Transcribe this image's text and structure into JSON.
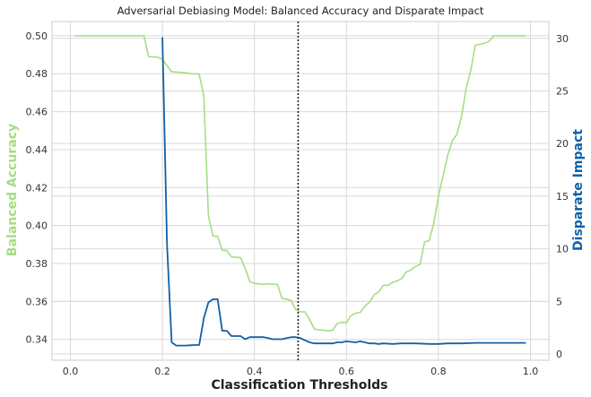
{
  "chart_data": {
    "type": "line",
    "title": "Adversarial Debiasing Model: Balanced Accuracy and Disparate Impact",
    "xlabel": "Classification Thresholds",
    "ylabel_left": "Balanced Accuracy",
    "ylabel_right": "Disparate Impact",
    "xlim": [
      -0.04,
      1.04
    ],
    "ylim_left": [
      0.329,
      0.5075
    ],
    "ylim_right": [
      -0.6,
      31.6
    ],
    "x_ticks": [
      "0.0",
      "0.2",
      "0.4",
      "0.6",
      "0.8",
      "1.0"
    ],
    "x_tick_values": [
      0.0,
      0.2,
      0.4,
      0.6,
      0.8,
      1.0
    ],
    "y_left_ticks": [
      "0.34",
      "0.36",
      "0.38",
      "0.40",
      "0.42",
      "0.44",
      "0.46",
      "0.48",
      "0.50"
    ],
    "y_left_tick_values": [
      0.34,
      0.36,
      0.38,
      0.4,
      0.42,
      0.44,
      0.46,
      0.48,
      0.5
    ],
    "y_right_ticks": [
      "0",
      "5",
      "10",
      "15",
      "20",
      "25",
      "30"
    ],
    "y_right_tick_values": [
      0,
      5,
      10,
      15,
      20,
      25,
      30
    ],
    "grid": true,
    "vline_x": 0.495,
    "colors": {
      "balanced_accuracy": "#a6dd84",
      "disparate_impact": "#1060a8",
      "vline": "#222222",
      "grid": "#d9d9d9",
      "spine": "#cccccc"
    },
    "series": [
      {
        "axis": "left",
        "points": [
          [
            0.01,
            0.5
          ],
          [
            0.16,
            0.5
          ],
          [
            0.17,
            0.489
          ],
          [
            0.19,
            0.4887
          ],
          [
            0.2,
            0.4875
          ],
          [
            0.22,
            0.481
          ],
          [
            0.25,
            0.4805
          ],
          [
            0.26,
            0.48
          ],
          [
            0.28,
            0.4798
          ],
          [
            0.29,
            0.468
          ],
          [
            0.3,
            0.405
          ],
          [
            0.31,
            0.3945
          ],
          [
            0.32,
            0.3943
          ],
          [
            0.33,
            0.387
          ],
          [
            0.34,
            0.3868
          ],
          [
            0.35,
            0.3835
          ],
          [
            0.37,
            0.383
          ],
          [
            0.38,
            0.3775
          ],
          [
            0.39,
            0.3705
          ],
          [
            0.4,
            0.3695
          ],
          [
            0.41,
            0.3693
          ],
          [
            0.42,
            0.369
          ],
          [
            0.43,
            0.3693
          ],
          [
            0.44,
            0.369
          ],
          [
            0.45,
            0.369
          ],
          [
            0.46,
            0.3615
          ],
          [
            0.47,
            0.3612
          ],
          [
            0.48,
            0.3605
          ],
          [
            0.49,
            0.3555
          ],
          [
            0.5,
            0.3545
          ],
          [
            0.51,
            0.3545
          ],
          [
            0.52,
            0.3505
          ],
          [
            0.53,
            0.3455
          ],
          [
            0.54,
            0.345
          ],
          [
            0.55,
            0.3448
          ],
          [
            0.56,
            0.3445
          ],
          [
            0.57,
            0.3448
          ],
          [
            0.58,
            0.3483
          ],
          [
            0.59,
            0.349
          ],
          [
            0.6,
            0.3488
          ],
          [
            0.61,
            0.3525
          ],
          [
            0.62,
            0.3538
          ],
          [
            0.63,
            0.3542
          ],
          [
            0.64,
            0.3575
          ],
          [
            0.65,
            0.3595
          ],
          [
            0.66,
            0.3635
          ],
          [
            0.67,
            0.365
          ],
          [
            0.68,
            0.3685
          ],
          [
            0.69,
            0.3685
          ],
          [
            0.7,
            0.37
          ],
          [
            0.71,
            0.3708
          ],
          [
            0.72,
            0.372
          ],
          [
            0.73,
            0.3755
          ],
          [
            0.74,
            0.3765
          ],
          [
            0.75,
            0.3785
          ],
          [
            0.76,
            0.3795
          ],
          [
            0.77,
            0.3915
          ],
          [
            0.78,
            0.392
          ],
          [
            0.79,
            0.4015
          ],
          [
            0.8,
            0.4155
          ],
          [
            0.81,
            0.426
          ],
          [
            0.82,
            0.4368
          ],
          [
            0.83,
            0.4445
          ],
          [
            0.84,
            0.448
          ],
          [
            0.85,
            0.457
          ],
          [
            0.86,
            0.472
          ],
          [
            0.87,
            0.4815
          ],
          [
            0.88,
            0.495
          ],
          [
            0.89,
            0.4955
          ],
          [
            0.9,
            0.496
          ],
          [
            0.91,
            0.497
          ],
          [
            0.92,
            0.5
          ],
          [
            0.99,
            0.5
          ]
        ]
      },
      {
        "axis": "right",
        "points": [
          [
            0.2,
            30.1
          ],
          [
            0.21,
            10.5
          ],
          [
            0.22,
            1.1
          ],
          [
            0.23,
            0.8
          ],
          [
            0.24,
            0.8
          ],
          [
            0.25,
            0.8
          ],
          [
            0.26,
            0.82
          ],
          [
            0.27,
            0.85
          ],
          [
            0.28,
            0.85
          ],
          [
            0.29,
            3.4
          ],
          [
            0.3,
            4.9
          ],
          [
            0.31,
            5.2
          ],
          [
            0.32,
            5.2
          ],
          [
            0.33,
            2.2
          ],
          [
            0.34,
            2.2
          ],
          [
            0.35,
            1.7
          ],
          [
            0.36,
            1.7
          ],
          [
            0.37,
            1.7
          ],
          [
            0.38,
            1.4
          ],
          [
            0.39,
            1.6
          ],
          [
            0.4,
            1.6
          ],
          [
            0.41,
            1.6
          ],
          [
            0.42,
            1.6
          ],
          [
            0.43,
            1.5
          ],
          [
            0.44,
            1.4
          ],
          [
            0.45,
            1.4
          ],
          [
            0.46,
            1.4
          ],
          [
            0.47,
            1.5
          ],
          [
            0.48,
            1.6
          ],
          [
            0.49,
            1.6
          ],
          [
            0.5,
            1.5
          ],
          [
            0.51,
            1.3
          ],
          [
            0.52,
            1.1
          ],
          [
            0.53,
            1.0
          ],
          [
            0.54,
            1.0
          ],
          [
            0.55,
            1.0
          ],
          [
            0.56,
            1.0
          ],
          [
            0.57,
            1.0
          ],
          [
            0.58,
            1.1
          ],
          [
            0.59,
            1.1
          ],
          [
            0.6,
            1.2
          ],
          [
            0.62,
            1.1
          ],
          [
            0.63,
            1.2
          ],
          [
            0.64,
            1.1
          ],
          [
            0.65,
            1.0
          ],
          [
            0.66,
            1.0
          ],
          [
            0.67,
            0.95
          ],
          [
            0.68,
            1.0
          ],
          [
            0.7,
            0.95
          ],
          [
            0.72,
            1.0
          ],
          [
            0.75,
            1.0
          ],
          [
            0.78,
            0.95
          ],
          [
            0.8,
            0.95
          ],
          [
            0.82,
            1.0
          ],
          [
            0.85,
            1.0
          ],
          [
            0.88,
            1.05
          ],
          [
            0.9,
            1.05
          ],
          [
            0.95,
            1.05
          ],
          [
            0.99,
            1.05
          ]
        ]
      }
    ]
  }
}
